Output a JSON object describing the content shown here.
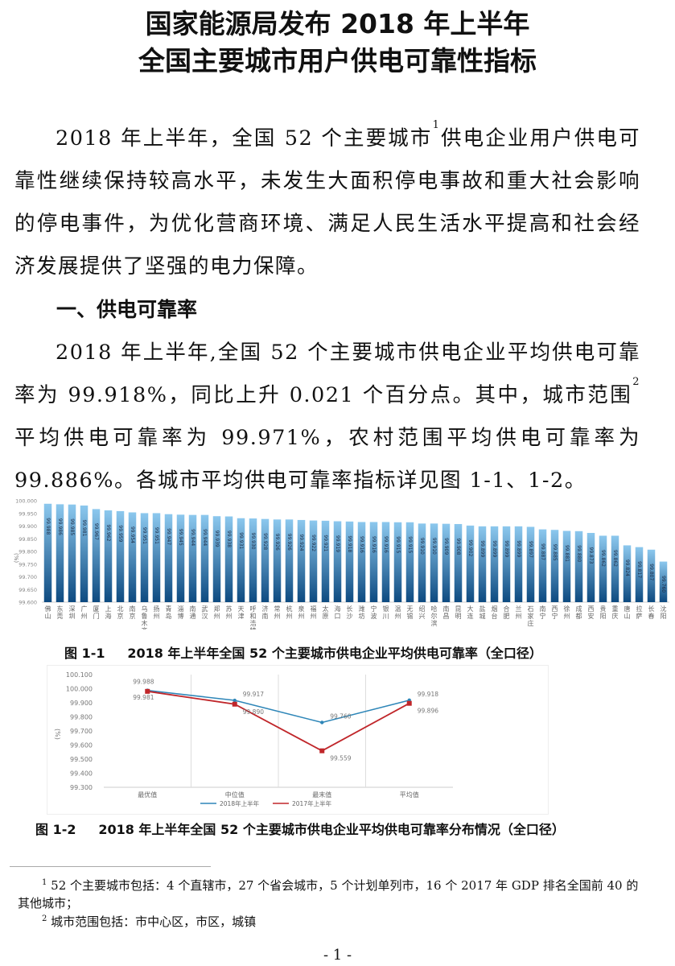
{
  "title": {
    "line1": "国家能源局发布 2018 年上半年",
    "line2": "全国主要城市用户供电可靠性指标"
  },
  "paragraph1": {
    "before": "2018 年上半年，全国 52 个主要城市",
    "sup": "1",
    "after": "供电企业用户供电可靠性继续保持较高水平，未发生大面积停电事故和重大社会影响的停电事件，为优化营商环境、满足人民生活水平提高和社会经济发展提供了坚强的电力保障。"
  },
  "section1": {
    "heading": "一、供电可靠率",
    "before": "2018 年上半年,全国 52 个主要城市供电企业平均供电可靠率为 99.918%，同比上升 0.021 个百分点。其中，城市范围",
    "sup": "2",
    "after": "平均供电可靠率为 99.971%，农村范围平均供电可靠率为 99.886%。各城市平均供电可靠率指标详见图 1-1、1-2。"
  },
  "chart_data": [
    {
      "type": "bar",
      "ylabel": "(%)",
      "ylim": [
        99.6,
        100.0
      ],
      "yticks": [
        "99.600",
        "99.650",
        "99.700",
        "99.750",
        "99.800",
        "99.850",
        "99.900",
        "99.950",
        "100.000"
      ],
      "bar_color_top": "#8cc8ee",
      "bar_color_bottom": "#0d4a80",
      "categories": [
        "佛山",
        "东莞",
        "深圳",
        "广州",
        "厦门",
        "上海",
        "北京",
        "南京",
        "乌鲁木齐",
        "扬州",
        "青岛",
        "淄博",
        "南通",
        "武汉",
        "郑州",
        "苏州",
        "天津",
        "呼和浩特",
        "济南",
        "常州",
        "杭州",
        "泉州",
        "福州",
        "太原",
        "海口",
        "长沙",
        "潍坊",
        "宁波",
        "银川",
        "温州",
        "无锡",
        "绍兴",
        "哈尔滨",
        "南昌",
        "昆明",
        "大连",
        "盐城",
        "烟台",
        "合肥",
        "兰州",
        "石家庄",
        "南宁",
        "西宁",
        "徐州",
        "成都",
        "西安",
        "贵阳",
        "重庆",
        "唐山",
        "拉萨",
        "长春",
        "沈阳"
      ],
      "values": [
        99.988,
        99.986,
        99.985,
        99.981,
        99.967,
        99.962,
        99.959,
        99.954,
        99.951,
        99.951,
        99.947,
        99.945,
        99.944,
        99.944,
        99.939,
        99.938,
        99.931,
        99.93,
        99.928,
        99.926,
        99.926,
        99.924,
        99.922,
        99.921,
        99.919,
        99.918,
        99.916,
        99.916,
        99.916,
        99.915,
        99.915,
        99.91,
        99.91,
        99.909,
        99.908,
        99.902,
        99.899,
        99.899,
        99.899,
        99.899,
        99.897,
        99.887,
        99.885,
        99.881,
        99.88,
        99.873,
        99.862,
        99.862,
        99.824,
        99.817,
        99.807,
        99.76
      ],
      "caption": "图 1-1     2018 年上半年全国 52 个主要城市供电企业平均供电可靠率（全口径）"
    },
    {
      "type": "line",
      "ylabel": "(%)",
      "ylim": [
        99.3,
        100.1
      ],
      "yticks": [
        "99.300",
        "99.400",
        "99.500",
        "99.600",
        "99.700",
        "99.800",
        "99.900",
        "100.000",
        "100.100"
      ],
      "categories": [
        "最优值",
        "中位值",
        "最末值",
        "平均值"
      ],
      "legend_position": "bottom",
      "series": [
        {
          "name": "2018年上半年",
          "color": "#2e86b8",
          "values": [
            99.988,
            99.917,
            99.76,
            99.918
          ]
        },
        {
          "name": "2017年上半年",
          "color": "#c0262a",
          "values": [
            99.981,
            99.89,
            99.559,
            99.896
          ]
        }
      ],
      "caption": "图 1-2     2018 年上半年全国 52 个主要城市供电企业平均供电可靠率分布情况（全口径）"
    }
  ],
  "footnotes": [
    {
      "sup": "1",
      "text": "52 个主要城市包括：4 个直辖市，27 个省会城市，5 个计划单列市，16 个 2017 年 GDP 排名全国前 40 的其他城市；"
    },
    {
      "sup": "2",
      "text": "城市范围包括：市中心区，市区，城镇"
    }
  ],
  "page_number": "- 1 -"
}
